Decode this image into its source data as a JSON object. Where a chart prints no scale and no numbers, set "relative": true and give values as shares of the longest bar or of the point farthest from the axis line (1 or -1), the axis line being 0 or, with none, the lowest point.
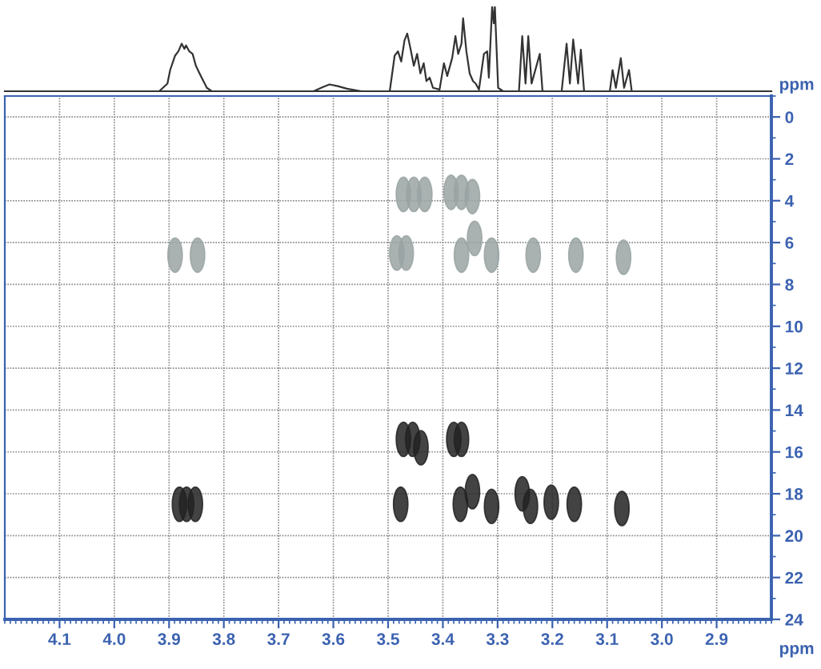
{
  "chart_data": [
    {
      "type": "line",
      "relative": true,
      "xlim": [
        4.2,
        2.8
      ],
      "tick_labels": false,
      "line_style": "solid",
      "series": [
        {
          "color": "#333333",
          "x": [
            4.2,
            3.918,
            3.903,
            3.898,
            3.889,
            3.883,
            3.877,
            3.872,
            3.869,
            3.863,
            3.857,
            3.851,
            3.842,
            3.831,
            3.822,
            3.636,
            3.619,
            3.607,
            3.592,
            3.575,
            3.549,
            3.497,
            3.488,
            3.482,
            3.476,
            3.47,
            3.465,
            3.459,
            3.453,
            3.447,
            3.441,
            3.435,
            3.43,
            3.424,
            3.418,
            3.406,
            3.398,
            3.392,
            3.383,
            3.377,
            3.372,
            3.366,
            3.363,
            3.357,
            3.351,
            3.345,
            3.34,
            3.334,
            3.325,
            3.319,
            3.316,
            3.31,
            3.307,
            3.305,
            3.299,
            3.29,
            3.261,
            3.255,
            3.249,
            3.244,
            3.238,
            3.223,
            3.218,
            3.183,
            3.174,
            3.168,
            3.162,
            3.153,
            3.148,
            3.142,
            3.095,
            3.09,
            3.084,
            3.075,
            3.069,
            3.06,
            3.055,
            2.8
          ],
          "values": [
            0,
            0,
            0.09,
            0.25,
            0.42,
            0.47,
            0.56,
            0.5,
            0.54,
            0.47,
            0.44,
            0.3,
            0.18,
            0.04,
            0,
            0,
            0.05,
            0.08,
            0.06,
            0.03,
            0,
            0,
            0.42,
            0.47,
            0.35,
            0.6,
            0.68,
            0.5,
            0.3,
            0.44,
            0.21,
            0.33,
            0.12,
            0.16,
            0.04,
            0.02,
            0.33,
            0.18,
            0.39,
            0.65,
            0.44,
            0.56,
            0.86,
            0.47,
            0.21,
            0.12,
            0.09,
            0.02,
            0.44,
            0.47,
            0.16,
            1,
            0.8,
            1,
            0.04,
            0,
            0,
            0.65,
            0.09,
            0.65,
            0.09,
            0.44,
            0,
            0,
            0.56,
            0.09,
            0.61,
            0.09,
            0.49,
            0,
            0,
            0.25,
            0.04,
            0.39,
            0.04,
            0.25,
            0,
            0
          ]
        }
      ]
    },
    {
      "type": "scatter",
      "xlabel": "ppm",
      "ylabel": "ppm",
      "xlim": [
        4.2,
        2.8
      ],
      "ylim": [
        24,
        -1
      ],
      "xticks": [
        4.1,
        {
          "value": 4.0,
          "label": "4.0"
        },
        3.9,
        3.8,
        3.7,
        3.6,
        3.5,
        3.4,
        3.3,
        3.2,
        3.1,
        {
          "value": 3.0,
          "label": "3.0"
        },
        2.9
      ],
      "yticks": [
        0,
        2,
        4,
        6,
        8,
        10,
        12,
        14,
        16,
        18,
        20,
        22,
        24
      ],
      "grid": true,
      "marker": "circle",
      "series": [
        {
          "color": "#9aa3a3",
          "x": [
            3.889,
            3.848,
            3.472,
            3.453,
            3.433,
            3.385,
            3.366,
            3.346,
            3.484,
            3.467,
            3.366,
            3.342,
            3.311,
            3.235,
            3.157,
            3.07
          ],
          "values": [
            6.6,
            6.6,
            3.7,
            3.7,
            3.7,
            3.6,
            3.6,
            3.8,
            6.5,
            6.5,
            6.6,
            5.8,
            6.6,
            6.6,
            6.6,
            6.7
          ]
        },
        {
          "color": "#222222",
          "x": [
            3.881,
            3.868,
            3.852,
            3.477,
            3.472,
            3.455,
            3.44,
            3.38,
            3.366,
            3.368,
            3.346,
            3.311,
            3.255,
            3.24,
            3.202,
            3.16,
            3.073
          ],
          "values": [
            18.5,
            18.5,
            18.5,
            18.5,
            15.4,
            15.4,
            15.8,
            15.4,
            15.4,
            18.5,
            17.9,
            18.6,
            18.0,
            18.6,
            18.4,
            18.5,
            18.7
          ]
        }
      ]
    }
  ]
}
